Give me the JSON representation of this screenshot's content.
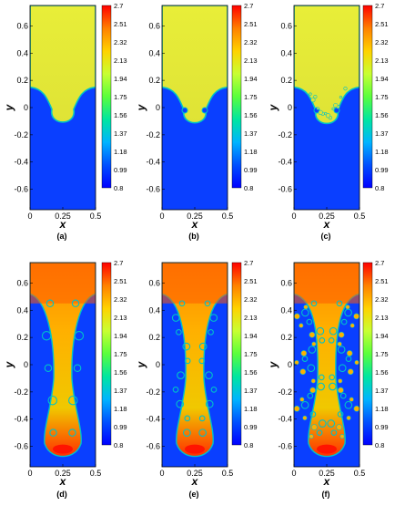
{
  "colorbar": {
    "colors": [
      "#ff0000",
      "#ff8000",
      "#ffd200",
      "#c8ff32",
      "#5aff3c",
      "#00e6a0",
      "#00b4ff",
      "#0050ff",
      "#0000ff"
    ],
    "labels": [
      "2.7",
      "2.51",
      "2.32",
      "2.13",
      "1.94",
      "1.75",
      "1.56",
      "1.37",
      "1.18",
      "0.99",
      "0.8"
    ]
  },
  "axes": {
    "xlabel": "x",
    "ylabel": "y",
    "x_ticks": [
      "0",
      "0.25",
      "0.5"
    ],
    "y_ticks": [
      "0.6",
      "0.4",
      "0.2",
      "0",
      "-0.2",
      "-0.4",
      "-0.6"
    ]
  },
  "panels": [
    {
      "id": "a",
      "caption": "(a)"
    },
    {
      "id": "b",
      "caption": "(b)"
    },
    {
      "id": "c",
      "caption": "(c)"
    },
    {
      "id": "d",
      "caption": "(d)"
    },
    {
      "id": "e",
      "caption": "(e)"
    },
    {
      "id": "f",
      "caption": "(f)"
    }
  ],
  "field_colors": {
    "heavy_top": "#e8ee38",
    "heavy_mid": "#dfe336",
    "light": "#0a3fff",
    "interface": "#00c2c8",
    "jet_core": "#ff5a00",
    "jet_edge": "#ffb000",
    "tip": "#ff1400"
  }
}
